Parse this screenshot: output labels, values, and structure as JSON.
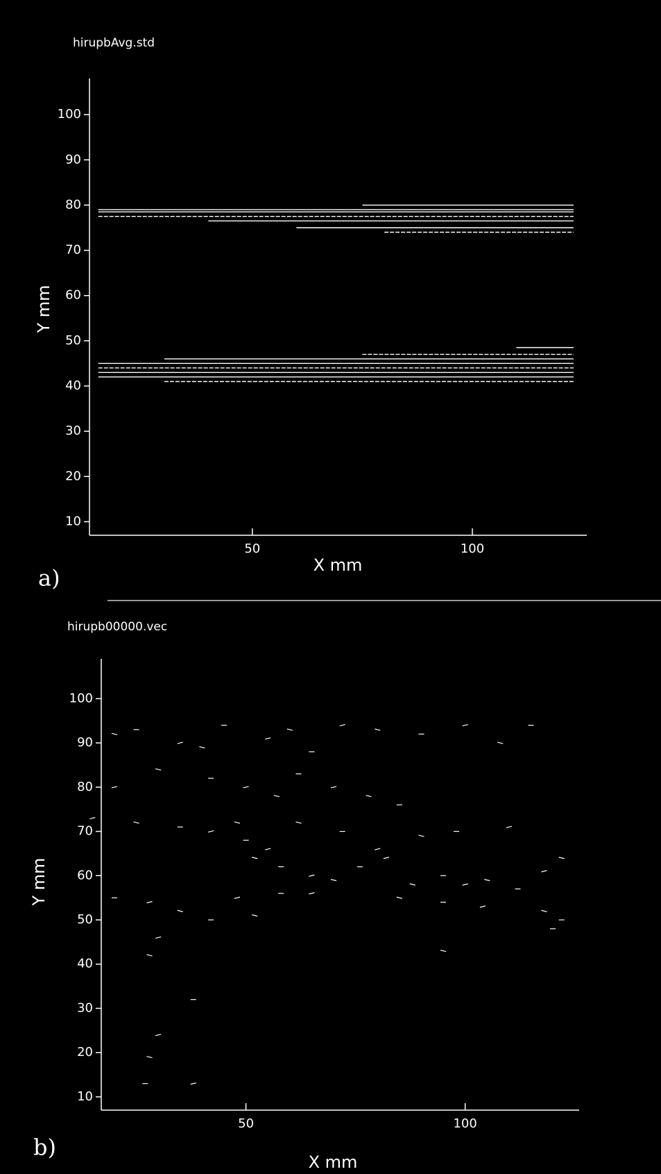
{
  "chart_data": [
    {
      "type": "line",
      "title": "hirupbAvg.std",
      "panel_label": "a)",
      "xlabel": "X mm",
      "ylabel": "Y mm",
      "xlim": [
        13,
        126
      ],
      "xticks": [
        50,
        100
      ],
      "ylim": [
        7,
        108
      ],
      "yticks": [
        10,
        20,
        30,
        40,
        50,
        60,
        70,
        80,
        90,
        100
      ],
      "color": "#ffffff",
      "series": [
        {
          "x": [
            15,
            123
          ],
          "values": [
            79,
            79
          ]
        },
        {
          "x": [
            15,
            123
          ],
          "values": [
            78.5,
            78.5
          ]
        },
        {
          "x": [
            15,
            123
          ],
          "values": [
            77.5,
            77.5
          ]
        },
        {
          "x": [
            40,
            123
          ],
          "values": [
            76.5,
            76.5
          ]
        },
        {
          "x": [
            60,
            123
          ],
          "values": [
            75,
            75
          ]
        },
        {
          "x": [
            80,
            123
          ],
          "values": [
            74,
            74
          ]
        },
        {
          "x": [
            75,
            123
          ],
          "values": [
            80,
            80
          ]
        },
        {
          "x": [
            110,
            123
          ],
          "values": [
            48.5,
            48.5
          ]
        },
        {
          "x": [
            75,
            123
          ],
          "values": [
            47,
            47
          ]
        },
        {
          "x": [
            30,
            123
          ],
          "values": [
            46,
            46
          ]
        },
        {
          "x": [
            15,
            123
          ],
          "values": [
            45,
            45
          ]
        },
        {
          "x": [
            15,
            123
          ],
          "values": [
            44,
            44
          ]
        },
        {
          "x": [
            15,
            123
          ],
          "values": [
            43,
            43
          ]
        },
        {
          "x": [
            15,
            123
          ],
          "values": [
            42,
            42
          ]
        },
        {
          "x": [
            30,
            123
          ],
          "values": [
            41,
            41
          ]
        }
      ]
    },
    {
      "type": "scatter",
      "title": "hirupb00000.vec",
      "panel_label": "b)",
      "xlabel": "X mm",
      "ylabel": "Y mm",
      "xlim": [
        17,
        126
      ],
      "xticks": [
        50,
        100
      ],
      "ylim": [
        7,
        109
      ],
      "yticks": [
        10,
        20,
        30,
        40,
        50,
        60,
        70,
        80,
        90,
        100
      ],
      "color": "#ffffff",
      "x": [
        20,
        25,
        35,
        40,
        45,
        55,
        60,
        65,
        72,
        80,
        90,
        100,
        108,
        115,
        20,
        30,
        42,
        50,
        57,
        62,
        70,
        78,
        85,
        15,
        25,
        35,
        42,
        48,
        50,
        55,
        62,
        72,
        80,
        90,
        98,
        110,
        52,
        58,
        65,
        70,
        76,
        82,
        88,
        95,
        100,
        105,
        112,
        118,
        122,
        20,
        28,
        35,
        42,
        48,
        52,
        58,
        65,
        85,
        95,
        104,
        118,
        122,
        30,
        28,
        38,
        30,
        28,
        27,
        38,
        95,
        120
      ],
      "values": [
        92,
        93,
        90,
        89,
        94,
        91,
        93,
        88,
        94,
        93,
        92,
        94,
        90,
        94,
        80,
        84,
        82,
        80,
        78,
        83,
        80,
        78,
        76,
        73,
        72,
        71,
        70,
        72,
        68,
        66,
        72,
        70,
        66,
        69,
        70,
        71,
        64,
        62,
        60,
        59,
        62,
        64,
        58,
        60,
        58,
        59,
        57,
        61,
        64,
        55,
        54,
        52,
        50,
        55,
        51,
        56,
        56,
        55,
        54,
        53,
        52,
        50,
        46,
        42,
        32,
        24,
        19,
        13,
        13,
        43,
        48
      ]
    }
  ]
}
